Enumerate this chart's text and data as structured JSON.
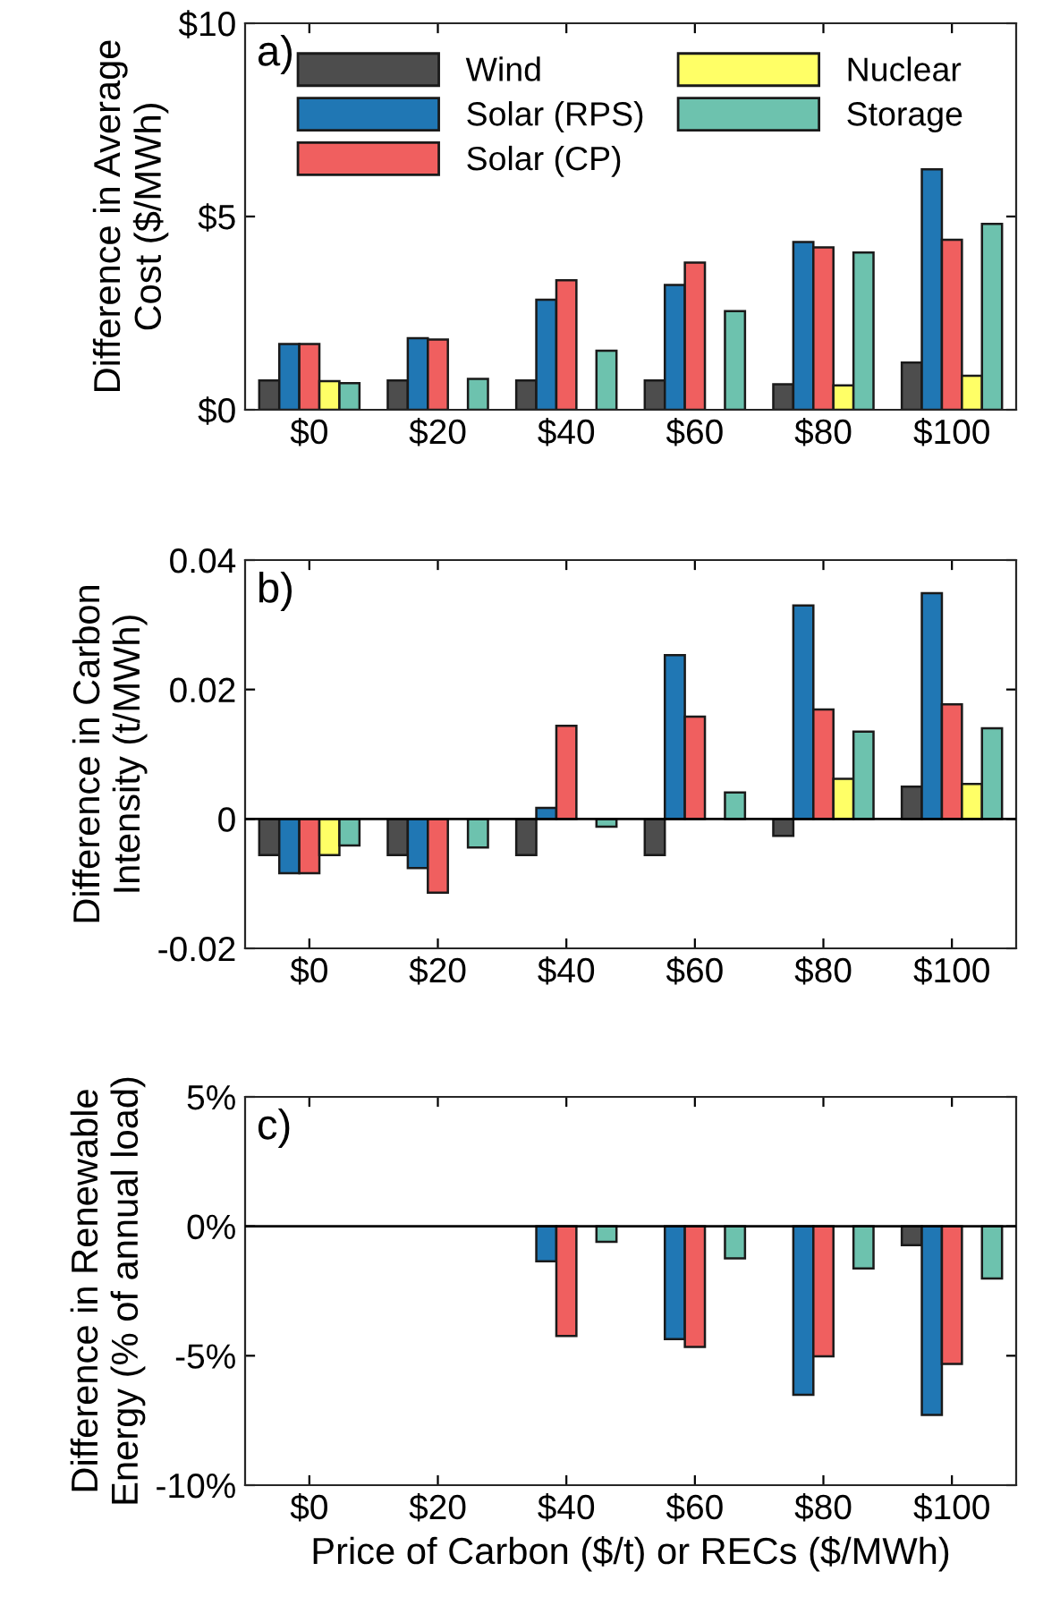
{
  "chart_data": [
    {
      "type": "bar",
      "ylabel": "Difference in Average\nCost ($/MWh)",
      "annotations": [
        "a)"
      ],
      "categories": [
        "$0",
        "$20",
        "$40",
        "$60",
        "$80",
        "$100"
      ],
      "series": [
        {
          "name": "Wind",
          "color": "#4d4d4d",
          "values": [
            0.76,
            0.76,
            0.76,
            0.76,
            0.66,
            1.22
          ]
        },
        {
          "name": "Solar (RPS)",
          "color": "#2077b4",
          "values": [
            1.7,
            1.85,
            2.85,
            3.23,
            4.34,
            6.22
          ]
        },
        {
          "name": "Solar (CP)",
          "color": "#f05f5f",
          "values": [
            1.7,
            1.82,
            3.35,
            3.81,
            4.2,
            4.4
          ]
        },
        {
          "name": "Nuclear",
          "color": "#ffff66",
          "values": [
            0.74,
            null,
            null,
            null,
            0.63,
            0.88
          ]
        },
        {
          "name": "Storage",
          "color": "#6dc2ae",
          "values": [
            0.69,
            0.8,
            1.53,
            2.55,
            4.07,
            4.81
          ]
        }
      ],
      "ylim": [
        0,
        10
      ],
      "yticks": [
        {
          "value": 0,
          "label": "$0"
        },
        {
          "value": 5,
          "label": "$5"
        },
        {
          "value": 10,
          "label": "$10"
        }
      ],
      "legend": "top",
      "grid": false
    },
    {
      "type": "bar",
      "ylabel": "Difference in Carbon\nIntensity (t/MWh)",
      "annotations": [
        "b)"
      ],
      "categories": [
        "$0",
        "$20",
        "$40",
        "$60",
        "$80",
        "$100"
      ],
      "series": [
        {
          "color": "#4d4d4d",
          "values": [
            -0.0056,
            -0.0056,
            -0.0056,
            -0.0056,
            -0.0026,
            0.005
          ]
        },
        {
          "color": "#2077b4",
          "values": [
            -0.0084,
            -0.0076,
            0.0017,
            0.0253,
            0.033,
            0.0349
          ]
        },
        {
          "color": "#f05f5f",
          "values": [
            -0.0084,
            -0.0114,
            0.0144,
            0.0158,
            0.0169,
            0.0177
          ]
        },
        {
          "color": "#ffff66",
          "values": [
            -0.0056,
            null,
            null,
            null,
            0.0062,
            0.0054
          ]
        },
        {
          "color": "#6dc2ae",
          "values": [
            -0.0041,
            -0.0044,
            -0.0012,
            0.0041,
            0.0135,
            0.014
          ]
        }
      ],
      "ylim": [
        -0.02,
        0.04
      ],
      "yticks": [
        {
          "value": -0.02,
          "label": "-0.02"
        },
        0,
        0.02,
        0.04
      ],
      "ref_lines": [
        {
          "axis": "y",
          "value": 0,
          "color": "#000000"
        }
      ],
      "grid": false
    },
    {
      "type": "bar",
      "ylabel": "Difference in Renewable\nEnergy (% of annual load)",
      "xlabel": "Price of Carbon ($/t) or RECs ($/MWh)",
      "annotations": [
        "c)"
      ],
      "categories": [
        "$0",
        "$20",
        "$40",
        "$60",
        "$80",
        "$100"
      ],
      "series": [
        {
          "color": "#4d4d4d",
          "values": [
            null,
            null,
            null,
            null,
            null,
            -0.73
          ]
        },
        {
          "color": "#2077b4",
          "values": [
            null,
            null,
            -1.35,
            -4.36,
            -6.51,
            -7.29
          ]
        },
        {
          "color": "#f05f5f",
          "values": [
            null,
            null,
            -4.24,
            -4.66,
            -5.02,
            -5.32
          ]
        },
        {
          "values": [
            null,
            null,
            null,
            null,
            null,
            null
          ]
        },
        {
          "color": "#6dc2ae",
          "values": [
            null,
            null,
            -0.6,
            -1.24,
            -1.63,
            -2.02
          ]
        }
      ],
      "ref_lines": [
        {
          "axis": "y",
          "value": 0,
          "color": "#000000"
        }
      ],
      "ylim": [
        -10,
        5
      ],
      "yticks": [
        {
          "value": -10,
          "label": "-10%"
        },
        {
          "value": -5,
          "label": "-5%"
        },
        {
          "value": 0,
          "label": "0%"
        },
        {
          "value": 5,
          "label": "5%"
        }
      ],
      "grid": false
    }
  ]
}
